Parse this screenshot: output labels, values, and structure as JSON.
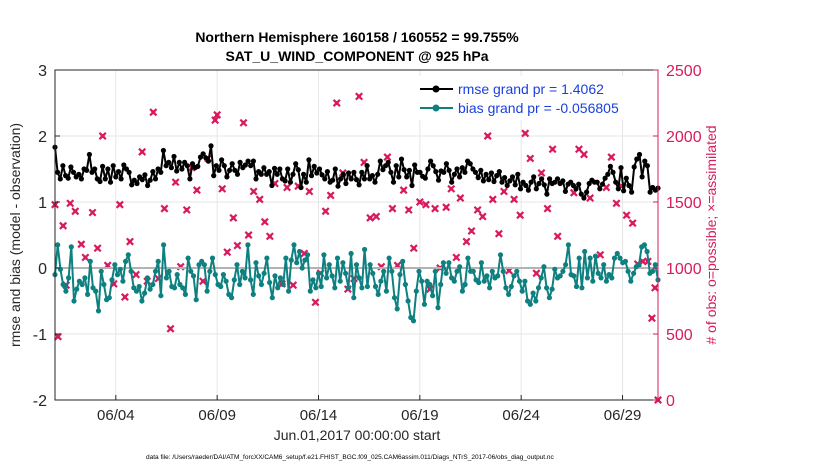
{
  "chart_data": {
    "type": "line",
    "title_line1": "Northern Hemisphere 160158 / 160552 = 99.755%",
    "title_line2": "SAT_U_WIND_COMPONENT @ 925 hPa",
    "xlabel": "Jun.01,2017 00:00:00 start",
    "ylabel_left": "rmse and bias (model - observation)",
    "ylabel_right": "# of obs: o=possible; ×=assimilated",
    "footer": "data file: /Users/raeder/DAI/ATM_forcXX/CAM6_setup/f.e21.FHIST_BGC.f09_025.CAM6assim.011/Diags_NTrS_2017-06/obs_diag_output.nc",
    "x_ticks": [
      {
        "day": 4,
        "label": "06/04"
      },
      {
        "day": 9,
        "label": "06/09"
      },
      {
        "day": 14,
        "label": "06/14"
      },
      {
        "day": 19,
        "label": "06/19"
      },
      {
        "day": 24,
        "label": "06/24"
      },
      {
        "day": 29,
        "label": "06/29"
      }
    ],
    "xlim": [
      1.0,
      30.75
    ],
    "ylim_left": [
      -2,
      3
    ],
    "yticks_left": [
      "3",
      "2",
      "1",
      "0",
      "-1",
      "-2"
    ],
    "ylim_right": [
      0,
      2500
    ],
    "yticks_right": [
      "2500",
      "2000",
      "1500",
      "1000",
      "500",
      "0"
    ],
    "colors": {
      "rmse": "#000000",
      "bias": "#0f8080",
      "obs": "#d81b5e",
      "zero": "#b3b3b3",
      "legend_text": "#1a3fe0",
      "right_axis": "#d81b5e"
    },
    "legend": [
      {
        "name": "rmse grand pr = 1.4062",
        "series": "rmse"
      },
      {
        "name": "bias grand pr = -0.056805",
        "series": "bias"
      }
    ],
    "series": [
      {
        "name": "rmse",
        "values": [
          1.83,
          1.45,
          1.35,
          1.55,
          1.4,
          1.36,
          1.53,
          1.45,
          1.38,
          1.42,
          1.35,
          1.5,
          1.48,
          1.72,
          1.45,
          1.5,
          1.35,
          1.31,
          1.54,
          1.35,
          1.5,
          1.3,
          1.55,
          1.38,
          1.46,
          1.35,
          1.56,
          1.5,
          1.45,
          1.26,
          1.33,
          1.28,
          1.38,
          1.34,
          1.41,
          1.25,
          1.33,
          1.46,
          1.35,
          1.5,
          1.45,
          1.78,
          1.55,
          1.6,
          1.52,
          1.69,
          1.47,
          1.6,
          1.5,
          1.6,
          1.55,
          1.35,
          1.58,
          1.52,
          1.54,
          1.68,
          1.73,
          1.67,
          1.62,
          1.85,
          1.4,
          1.55,
          1.48,
          1.64,
          1.55,
          1.38,
          1.48,
          1.58,
          1.48,
          1.42,
          1.6,
          1.52,
          1.56,
          1.62,
          1.55,
          1.62,
          1.35,
          1.46,
          1.42,
          1.52,
          1.42,
          1.46,
          1.25,
          1.51,
          1.42,
          1.5,
          1.35,
          1.32,
          1.5,
          1.3,
          1.42,
          1.58,
          1.49,
          1.22,
          1.42,
          1.3,
          1.64,
          1.4,
          1.54,
          1.44,
          1.5,
          1.41,
          1.35,
          1.46,
          1.3,
          1.33,
          1.5,
          1.24,
          1.35,
          1.42,
          1.28,
          1.44,
          1.35,
          1.45,
          1.34,
          1.26,
          1.45,
          1.35,
          1.55,
          1.35,
          1.4,
          1.3,
          1.42,
          1.62,
          1.49,
          1.55,
          1.6,
          1.45,
          1.3,
          1.55,
          1.38,
          1.65,
          1.49,
          1.38,
          1.48,
          1.25,
          1.56,
          1.45,
          1.45,
          1.39,
          1.36,
          1.5,
          1.62,
          1.55,
          1.46,
          1.33,
          1.47,
          1.45,
          1.58,
          1.48,
          1.3,
          1.42,
          1.5,
          1.38,
          1.52,
          1.45,
          1.62,
          1.58,
          1.5,
          1.45,
          1.37,
          1.48,
          1.32,
          1.42,
          1.34,
          1.44,
          1.31,
          1.4,
          1.46,
          1.3,
          1.37,
          1.25,
          1.32,
          1.38,
          1.26,
          1.42,
          1.2,
          1.3,
          1.25,
          1.18,
          1.3,
          1.38,
          1.2,
          1.28,
          1.35,
          1.26,
          1.12,
          1.35,
          1.28,
          1.3,
          1.35,
          1.28,
          1.32,
          1.16,
          1.27,
          1.3,
          1.25,
          1.2,
          1.27,
          1.12,
          1.06,
          1.15,
          1.28,
          1.33,
          1.3,
          1.3,
          1.2,
          1.27,
          1.36,
          1.42,
          1.54,
          1.45,
          1.3,
          1.2,
          1.52,
          1.17,
          1.36,
          1.25,
          1.15,
          1.53,
          1.65,
          1.72,
          1.38,
          1.62,
          1.55,
          1.15,
          1.22,
          1.18,
          1.21
        ]
      },
      {
        "name": "bias",
        "values": [
          -0.1,
          0.35,
          -0.02,
          -0.25,
          -0.35,
          -0.15,
          0.32,
          -0.5,
          -0.32,
          -0.2,
          -0.25,
          -0.15,
          -0.4,
          0.1,
          -0.3,
          -0.35,
          -0.65,
          -0.05,
          -0.25,
          -0.48,
          -0.45,
          -0.18,
          0.05,
          -0.1,
          -0.02,
          -0.2,
          0.1,
          0.2,
          -0.05,
          -0.3,
          -0.35,
          -0.28,
          -0.5,
          -0.38,
          -0.15,
          -0.32,
          -0.25,
          -0.05,
          0.1,
          -0.42,
          0.35,
          -0.15,
          -0.05,
          -0.28,
          -0.3,
          -0.1,
          -0.25,
          -0.3,
          -0.4,
          0.15,
          -0.05,
          -0.12,
          -0.48,
          0.05,
          0.1,
          0.05,
          -0.35,
          -0.05,
          0.15,
          -0.1,
          -0.25,
          -0.28,
          -0.1,
          -0.2,
          -0.4,
          -0.45,
          -0.18,
          0.05,
          -0.25,
          -0.05,
          -0.15,
          0.35,
          -0.18,
          -0.4,
          0.08,
          -0.12,
          -0.25,
          -0.08,
          0.15,
          -0.22,
          -0.45,
          -0.12,
          -0.3,
          -0.15,
          -0.25,
          0.15,
          -0.35,
          0.12,
          0.35,
          0.08,
          0.25,
          0.0,
          0.12,
          0.2,
          -0.35,
          -0.18,
          -0.3,
          -0.08,
          -0.28,
          0.2,
          -0.15,
          0.05,
          -0.12,
          -0.3,
          0.15,
          -0.2,
          0.08,
          -0.08,
          -0.3,
          0.22,
          -0.45,
          0.05,
          -0.15,
          -0.3,
          0.28,
          -0.28,
          0.05,
          -0.08,
          -0.28,
          -0.4,
          -0.2,
          -0.05,
          -0.35,
          0.15,
          -0.05,
          -0.45,
          -0.62,
          -0.1,
          0.1,
          -0.25,
          -0.5,
          -0.75,
          -0.8,
          -0.35,
          -0.05,
          -0.2,
          -0.55,
          -0.2,
          -0.25,
          -0.42,
          -0.05,
          -0.6,
          -0.25,
          0.08,
          -0.08,
          0.08,
          -0.15,
          -0.2,
          -0.05,
          0.02,
          -0.35,
          -0.25,
          0.15,
          -0.05,
          -0.05,
          -0.18,
          -0.22,
          0.08,
          -0.2,
          -0.12,
          -0.3,
          -0.05,
          -0.15,
          -0.12,
          0.2,
          -0.05,
          -0.3,
          -0.4,
          -0.28,
          -0.12,
          -0.05,
          -0.2,
          -0.35,
          -0.2,
          -0.5,
          -0.55,
          -0.38,
          -0.5,
          -0.3,
          -0.15,
          0.02,
          -0.3,
          -0.45,
          -0.32,
          -0.02,
          -0.15,
          -0.12,
          -0.05,
          0.05,
          0.35,
          -0.1,
          -0.12,
          -0.28,
          0.15,
          -0.3,
          0.25,
          -0.15,
          0.15,
          -0.2,
          0.18,
          -0.08,
          -0.15,
          0.05,
          -0.2,
          -0.1,
          -0.15,
          0.15,
          0.22,
          0.15,
          0.08,
          0.1,
          -0.05,
          -0.2,
          -0.08,
          0.02,
          0.05,
          0.32,
          0.35,
          0.25,
          -0.08,
          -0.05,
          0.05,
          -0.18
        ]
      },
      {
        "name": "obs_assimilated",
        "points": [
          {
            "day": 1.0,
            "count": 1480
          },
          {
            "day": 1.15,
            "count": 480
          },
          {
            "day": 1.4,
            "count": 1320
          },
          {
            "day": 1.55,
            "count": 870
          },
          {
            "day": 1.75,
            "count": 1490
          },
          {
            "day": 2.0,
            "count": 1430
          },
          {
            "day": 2.3,
            "count": 1180
          },
          {
            "day": 2.5,
            "count": 1080
          },
          {
            "day": 2.85,
            "count": 1420
          },
          {
            "day": 3.1,
            "count": 1150
          },
          {
            "day": 3.35,
            "count": 2000
          },
          {
            "day": 3.6,
            "count": 1020
          },
          {
            "day": 3.9,
            "count": 880
          },
          {
            "day": 4.2,
            "count": 1480
          },
          {
            "day": 4.45,
            "count": 780
          },
          {
            "day": 4.7,
            "count": 1200
          },
          {
            "day": 5.0,
            "count": 950
          },
          {
            "day": 5.3,
            "count": 1880
          },
          {
            "day": 5.55,
            "count": 900
          },
          {
            "day": 5.85,
            "count": 2180
          },
          {
            "day": 6.1,
            "count": 920
          },
          {
            "day": 6.4,
            "count": 1450
          },
          {
            "day": 6.7,
            "count": 540
          },
          {
            "day": 6.95,
            "count": 1650
          },
          {
            "day": 7.2,
            "count": 1010
          },
          {
            "day": 7.5,
            "count": 1440
          },
          {
            "day": 7.75,
            "count": 1760
          },
          {
            "day": 8.0,
            "count": 1590
          },
          {
            "day": 8.3,
            "count": 900
          },
          {
            "day": 8.55,
            "count": 1830
          },
          {
            "day": 8.9,
            "count": 2120
          },
          {
            "day": 9.0,
            "count": 2160
          },
          {
            "day": 9.25,
            "count": 1600
          },
          {
            "day": 9.5,
            "count": 1120
          },
          {
            "day": 9.8,
            "count": 1380
          },
          {
            "day": 10.0,
            "count": 1170
          },
          {
            "day": 10.3,
            "count": 2100
          },
          {
            "day": 10.55,
            "count": 1250
          },
          {
            "day": 10.8,
            "count": 1580
          },
          {
            "day": 11.1,
            "count": 1520
          },
          {
            "day": 11.35,
            "count": 1350
          },
          {
            "day": 11.6,
            "count": 1240
          },
          {
            "day": 11.85,
            "count": 1640
          },
          {
            "day": 12.2,
            "count": 880
          },
          {
            "day": 12.45,
            "count": 1610
          },
          {
            "day": 12.75,
            "count": 870
          },
          {
            "day": 13.0,
            "count": 1620
          },
          {
            "day": 13.3,
            "count": 1110
          },
          {
            "day": 13.55,
            "count": 1580
          },
          {
            "day": 13.85,
            "count": 740
          },
          {
            "day": 14.1,
            "count": 960
          },
          {
            "day": 14.35,
            "count": 1430
          },
          {
            "day": 14.6,
            "count": 1550
          },
          {
            "day": 14.9,
            "count": 2250
          },
          {
            "day": 15.2,
            "count": 1720
          },
          {
            "day": 15.45,
            "count": 840
          },
          {
            "day": 15.75,
            "count": 920
          },
          {
            "day": 16.0,
            "count": 2300
          },
          {
            "day": 16.25,
            "count": 1800
          },
          {
            "day": 16.55,
            "count": 1380
          },
          {
            "day": 16.85,
            "count": 1390
          },
          {
            "day": 17.1,
            "count": 1010
          },
          {
            "day": 17.4,
            "count": 1840
          },
          {
            "day": 17.65,
            "count": 1450
          },
          {
            "day": 17.9,
            "count": 1020
          },
          {
            "day": 18.2,
            "count": 1590
          },
          {
            "day": 18.45,
            "count": 1440
          },
          {
            "day": 18.7,
            "count": 1150
          },
          {
            "day": 19.0,
            "count": 1500
          },
          {
            "day": 19.3,
            "count": 1480
          },
          {
            "day": 19.5,
            "count": 840
          },
          {
            "day": 19.75,
            "count": 1450
          },
          {
            "day": 20.0,
            "count": 1000
          },
          {
            "day": 20.3,
            "count": 1460
          },
          {
            "day": 20.55,
            "count": 1600
          },
          {
            "day": 20.8,
            "count": 1080
          },
          {
            "day": 21.0,
            "count": 1530
          },
          {
            "day": 21.3,
            "count": 1200
          },
          {
            "day": 21.55,
            "count": 1280
          },
          {
            "day": 21.85,
            "count": 1440
          },
          {
            "day": 22.1,
            "count": 1390
          },
          {
            "day": 22.35,
            "count": 2000
          },
          {
            "day": 22.6,
            "count": 1520
          },
          {
            "day": 22.9,
            "count": 1260
          },
          {
            "day": 23.15,
            "count": 1580
          },
          {
            "day": 23.4,
            "count": 980
          },
          {
            "day": 23.65,
            "count": 1520
          },
          {
            "day": 23.95,
            "count": 1400
          },
          {
            "day": 24.2,
            "count": 2020
          },
          {
            "day": 24.45,
            "count": 1830
          },
          {
            "day": 24.75,
            "count": 960
          },
          {
            "day": 25.0,
            "count": 1720
          },
          {
            "day": 25.3,
            "count": 1450
          },
          {
            "day": 25.55,
            "count": 1900
          },
          {
            "day": 25.8,
            "count": 1240
          },
          {
            "day": 26.1,
            "count": 2250
          },
          {
            "day": 26.35,
            "count": 2250
          },
          {
            "day": 26.6,
            "count": 1570
          },
          {
            "day": 26.85,
            "count": 1900
          },
          {
            "day": 27.1,
            "count": 1860
          },
          {
            "day": 27.4,
            "count": 1530
          },
          {
            "day": 27.65,
            "count": 2390
          },
          {
            "day": 27.9,
            "count": 1100
          },
          {
            "day": 28.2,
            "count": 1610
          },
          {
            "day": 28.45,
            "count": 1840
          },
          {
            "day": 28.7,
            "count": 1490
          },
          {
            "day": 28.95,
            "count": 1620
          },
          {
            "day": 29.2,
            "count": 1400
          },
          {
            "day": 29.5,
            "count": 1340
          },
          {
            "day": 29.75,
            "count": 1030
          },
          {
            "day": 30.0,
            "count": 1050
          },
          {
            "day": 30.25,
            "count": 1050
          },
          {
            "day": 30.45,
            "count": 620
          },
          {
            "day": 30.6,
            "count": 850
          },
          {
            "day": 30.75,
            "count": 0
          }
        ]
      }
    ]
  }
}
